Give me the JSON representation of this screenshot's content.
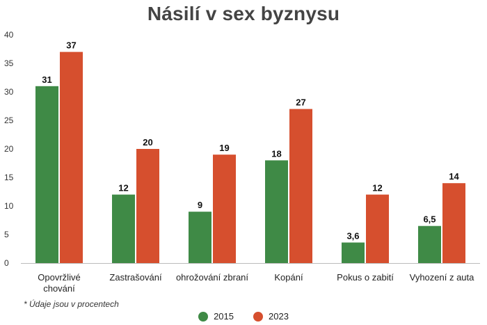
{
  "chart_data": {
    "type": "bar",
    "title": "Násilí v sex byznysu",
    "categories": [
      "Opovržlivé\nchování",
      "Zastrašování",
      "ohrožování zbraní",
      "Kopání",
      "Pokus o zabití",
      "Vyhození z auta"
    ],
    "series": [
      {
        "name": "2015",
        "values": [
          31,
          12,
          9,
          18,
          3.6,
          6.5
        ],
        "labels": [
          "31",
          "12",
          "9",
          "18",
          "3,6",
          "6,5"
        ],
        "color": "#3f8a46"
      },
      {
        "name": "2023",
        "values": [
          37,
          20,
          19,
          27,
          12,
          14
        ],
        "labels": [
          "37",
          "20",
          "19",
          "27",
          "12",
          "14"
        ],
        "color": "#d64f2e"
      }
    ],
    "yticks": [
      0,
      5,
      10,
      15,
      20,
      25,
      30,
      35,
      40
    ],
    "ylim": [
      0,
      40
    ],
    "grid": false,
    "legend_position": "bottom",
    "footnote": "* Údaje jsou v procentech"
  }
}
